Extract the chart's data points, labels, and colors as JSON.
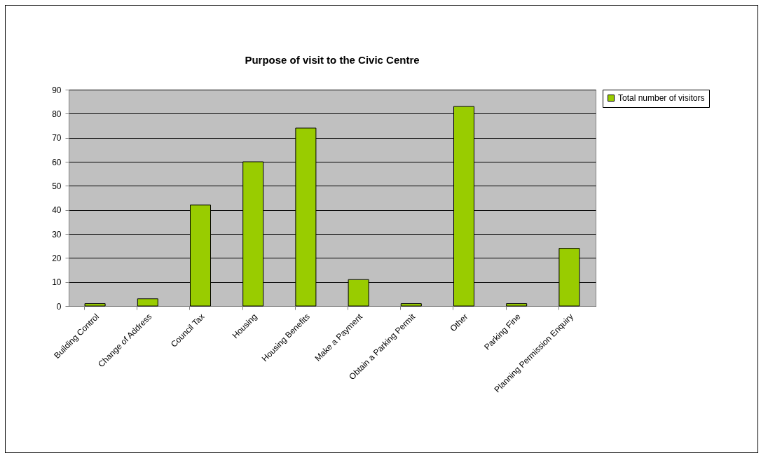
{
  "chart_data": {
    "type": "bar",
    "title": "Purpose of visit to the Civic Centre",
    "categories": [
      "Building Control",
      "Change of Address",
      "Council Tax",
      "Housing",
      "Housing Benefits",
      "Make a Payment",
      "Obtain a Parking Permit",
      "Other",
      "Parking Fine",
      "Planning Permission Enquiry"
    ],
    "series": [
      {
        "name": "Total number of visitors",
        "color": "#99cc00",
        "values": [
          1,
          3,
          42,
          60,
          74,
          11,
          1,
          83,
          1,
          24
        ]
      }
    ],
    "ylim": [
      0,
      90
    ],
    "yticks": [
      0,
      10,
      20,
      30,
      40,
      50,
      60,
      70,
      80,
      90
    ],
    "grid": "y",
    "legend": "right"
  }
}
